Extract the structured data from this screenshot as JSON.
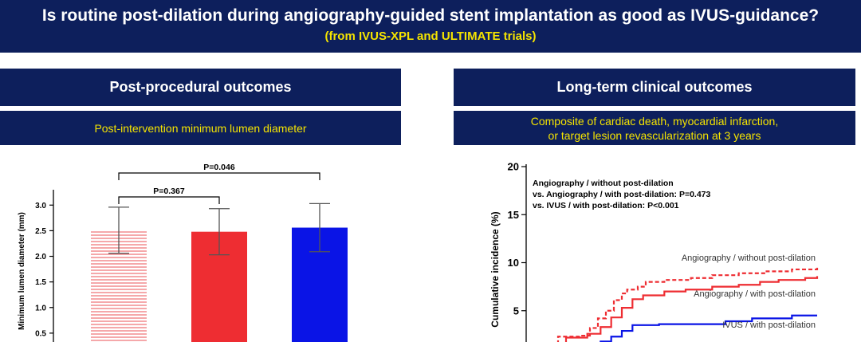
{
  "banner": {
    "title": "Is routine post-dilation during angiography-guided stent implantation as good as IVUS-guidance?",
    "subtitle": "(from IVUS-XPL and ULTIMATE trials)"
  },
  "left_panel": {
    "heading": "Post-procedural outcomes",
    "subheading": "Post-intervention minimum lumen diameter"
  },
  "right_panel": {
    "heading": "Long-term clinical outcomes",
    "subheading_line1": "Composite of cardiac death, myocardial infarction,",
    "subheading_line2": "or target lesion revascularization at 3 years"
  },
  "colors": {
    "banner_bg": "#0d1f5c",
    "accent_yellow": "#f5e400",
    "bar_red": "#ee2d32",
    "bar_blue": "#0a14e6",
    "hatch_red": "#f0797c"
  },
  "chart_data": [
    {
      "type": "bar",
      "ylabel": "Minimum lumen diameter (mm)",
      "ylim": [
        0,
        3.3
      ],
      "yticks": [
        "0.5",
        "1.0",
        "1.5",
        "2.0",
        "2.5",
        "3.0"
      ],
      "categories": [
        "",
        "",
        ""
      ],
      "values": [
        2.49,
        2.48,
        2.56
      ],
      "error_low": [
        2.06,
        2.03,
        2.09
      ],
      "error_high": [
        2.96,
        2.93,
        3.03
      ],
      "styles": [
        "hatched-red",
        "solid-red",
        "solid-blue"
      ],
      "comparisons": [
        {
          "from": 0,
          "to": 1,
          "label": "P=0.367"
        },
        {
          "from": 0,
          "to": 2,
          "label": "P=0.046"
        }
      ]
    },
    {
      "type": "line",
      "ylabel": "Cumulative incidence (%)",
      "ylim": [
        0,
        20
      ],
      "yticks": [
        "5",
        "10",
        "15",
        "20"
      ],
      "xlim": [
        0,
        1095
      ],
      "annotation_lines": [
        "Angiography / without post-dilation",
        "vs. Angiography / with post-dilation: P=0.473",
        "vs. IVUS / with post-dilation: P<0.001"
      ],
      "series": [
        {
          "name": "Angiography / without post-dilation",
          "color": "#ee2d32",
          "dashed": true,
          "points": [
            [
              0,
              1.5
            ],
            [
              120,
              2.3
            ],
            [
              200,
              2.4
            ],
            [
              240,
              3.2
            ],
            [
              270,
              4.2
            ],
            [
              300,
              5.0
            ],
            [
              330,
              6.1
            ],
            [
              360,
              6.8
            ],
            [
              380,
              7.2
            ],
            [
              420,
              7.5
            ],
            [
              450,
              8.0
            ],
            [
              520,
              8.2
            ],
            [
              620,
              8.4
            ],
            [
              700,
              8.7
            ],
            [
              800,
              8.9
            ],
            [
              900,
              9.1
            ],
            [
              1000,
              9.3
            ],
            [
              1095,
              9.6
            ]
          ]
        },
        {
          "name": "Angiography / with post-dilation",
          "color": "#ee2d32",
          "dashed": false,
          "points": [
            [
              0,
              1.5
            ],
            [
              150,
              2.2
            ],
            [
              230,
              2.6
            ],
            [
              280,
              3.3
            ],
            [
              320,
              4.3
            ],
            [
              360,
              5.3
            ],
            [
              400,
              6.2
            ],
            [
              440,
              6.6
            ],
            [
              520,
              7.0
            ],
            [
              600,
              7.2
            ],
            [
              700,
              7.5
            ],
            [
              800,
              7.7
            ],
            [
              880,
              8.0
            ],
            [
              950,
              8.2
            ],
            [
              1050,
              8.4
            ],
            [
              1095,
              8.6
            ]
          ]
        },
        {
          "name": "IVUS / with post-dilation",
          "color": "#0a14e6",
          "dashed": false,
          "points": [
            [
              0,
              1.5
            ],
            [
              240,
              1.5
            ],
            [
              280,
              1.8
            ],
            [
              320,
              2.3
            ],
            [
              360,
              2.9
            ],
            [
              400,
              3.5
            ],
            [
              500,
              3.6
            ],
            [
              650,
              3.6
            ],
            [
              750,
              3.9
            ],
            [
              850,
              4.2
            ],
            [
              1000,
              4.5
            ],
            [
              1095,
              4.5
            ]
          ]
        }
      ]
    }
  ]
}
